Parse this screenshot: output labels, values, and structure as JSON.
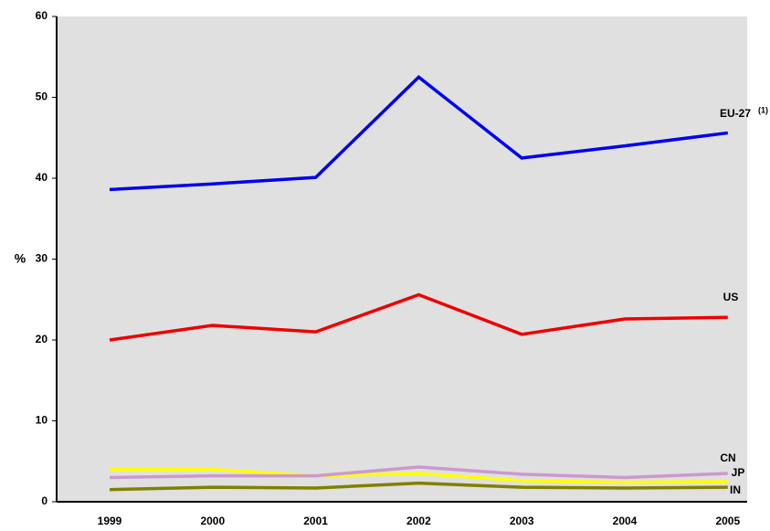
{
  "chart_data": {
    "type": "line",
    "y_label": "%",
    "categories": [
      "1999",
      "2000",
      "2001",
      "2002",
      "2003",
      "2004",
      "2005"
    ],
    "series": [
      {
        "name": "EU-27",
        "note": "(1)",
        "color": "#0000ee",
        "values": [
          38.6,
          39.3,
          40.1,
          52.5,
          42.5,
          44.0,
          45.6
        ]
      },
      {
        "name": "US",
        "color": "#ee0000",
        "values": [
          20.0,
          21.8,
          21.0,
          25.6,
          20.7,
          22.6,
          22.8
        ]
      },
      {
        "name": "CN",
        "color": "#ffff00",
        "values": [
          4.0,
          4.0,
          3.2,
          3.5,
          2.6,
          2.4,
          2.5
        ]
      },
      {
        "name": "JP",
        "color": "#cc99cc",
        "values": [
          3.0,
          3.2,
          3.2,
          4.3,
          3.4,
          3.0,
          3.5
        ]
      },
      {
        "name": "IN",
        "color": "#808000",
        "values": [
          1.5,
          1.8,
          1.7,
          2.3,
          1.8,
          1.7,
          1.8
        ]
      }
    ],
    "ylim": [
      0,
      60
    ],
    "yticks": [
      0,
      10,
      20,
      30,
      40,
      50,
      60
    ],
    "grid": false
  }
}
